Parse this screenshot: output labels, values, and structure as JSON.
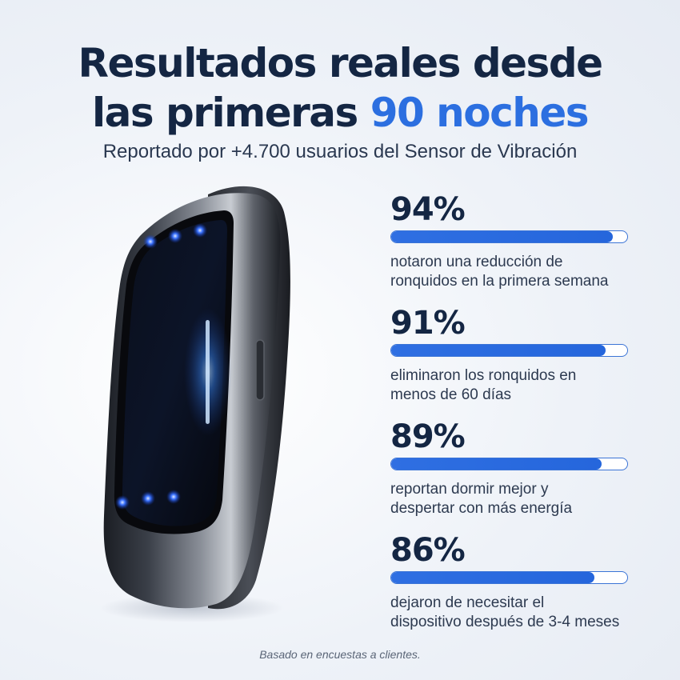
{
  "header": {
    "title_line1": "Resultados reales desde",
    "title_line2_prefix": "las primeras ",
    "title_line2_accent": "90 noches",
    "subtitle": "Reportado por +4.700 usuarios del Sensor de Vibración"
  },
  "colors": {
    "accent": "#2c6fe0",
    "heading": "#142643",
    "bar_fill": "#2566dc",
    "led": "#2a6bff"
  },
  "device": {
    "icon": "vibration-sensor-device-image"
  },
  "stats": [
    {
      "value": "94%",
      "fill": 0.94,
      "desc_line1": "notaron una reducción de",
      "desc_line2": "ronquidos en la primera semana"
    },
    {
      "value": "91%",
      "fill": 0.91,
      "desc_line1": "eliminaron los ronquidos en",
      "desc_line2": "menos de 60 días"
    },
    {
      "value": "89%",
      "fill": 0.89,
      "desc_line1": "reportan dormir mejor y",
      "desc_line2": "despertar con más energía"
    },
    {
      "value": "86%",
      "fill": 0.86,
      "desc_line1": "dejaron de necesitar el",
      "desc_line2": "dispositivo después de 3-4 meses"
    }
  ],
  "footnote": "Basado en encuestas a clientes."
}
